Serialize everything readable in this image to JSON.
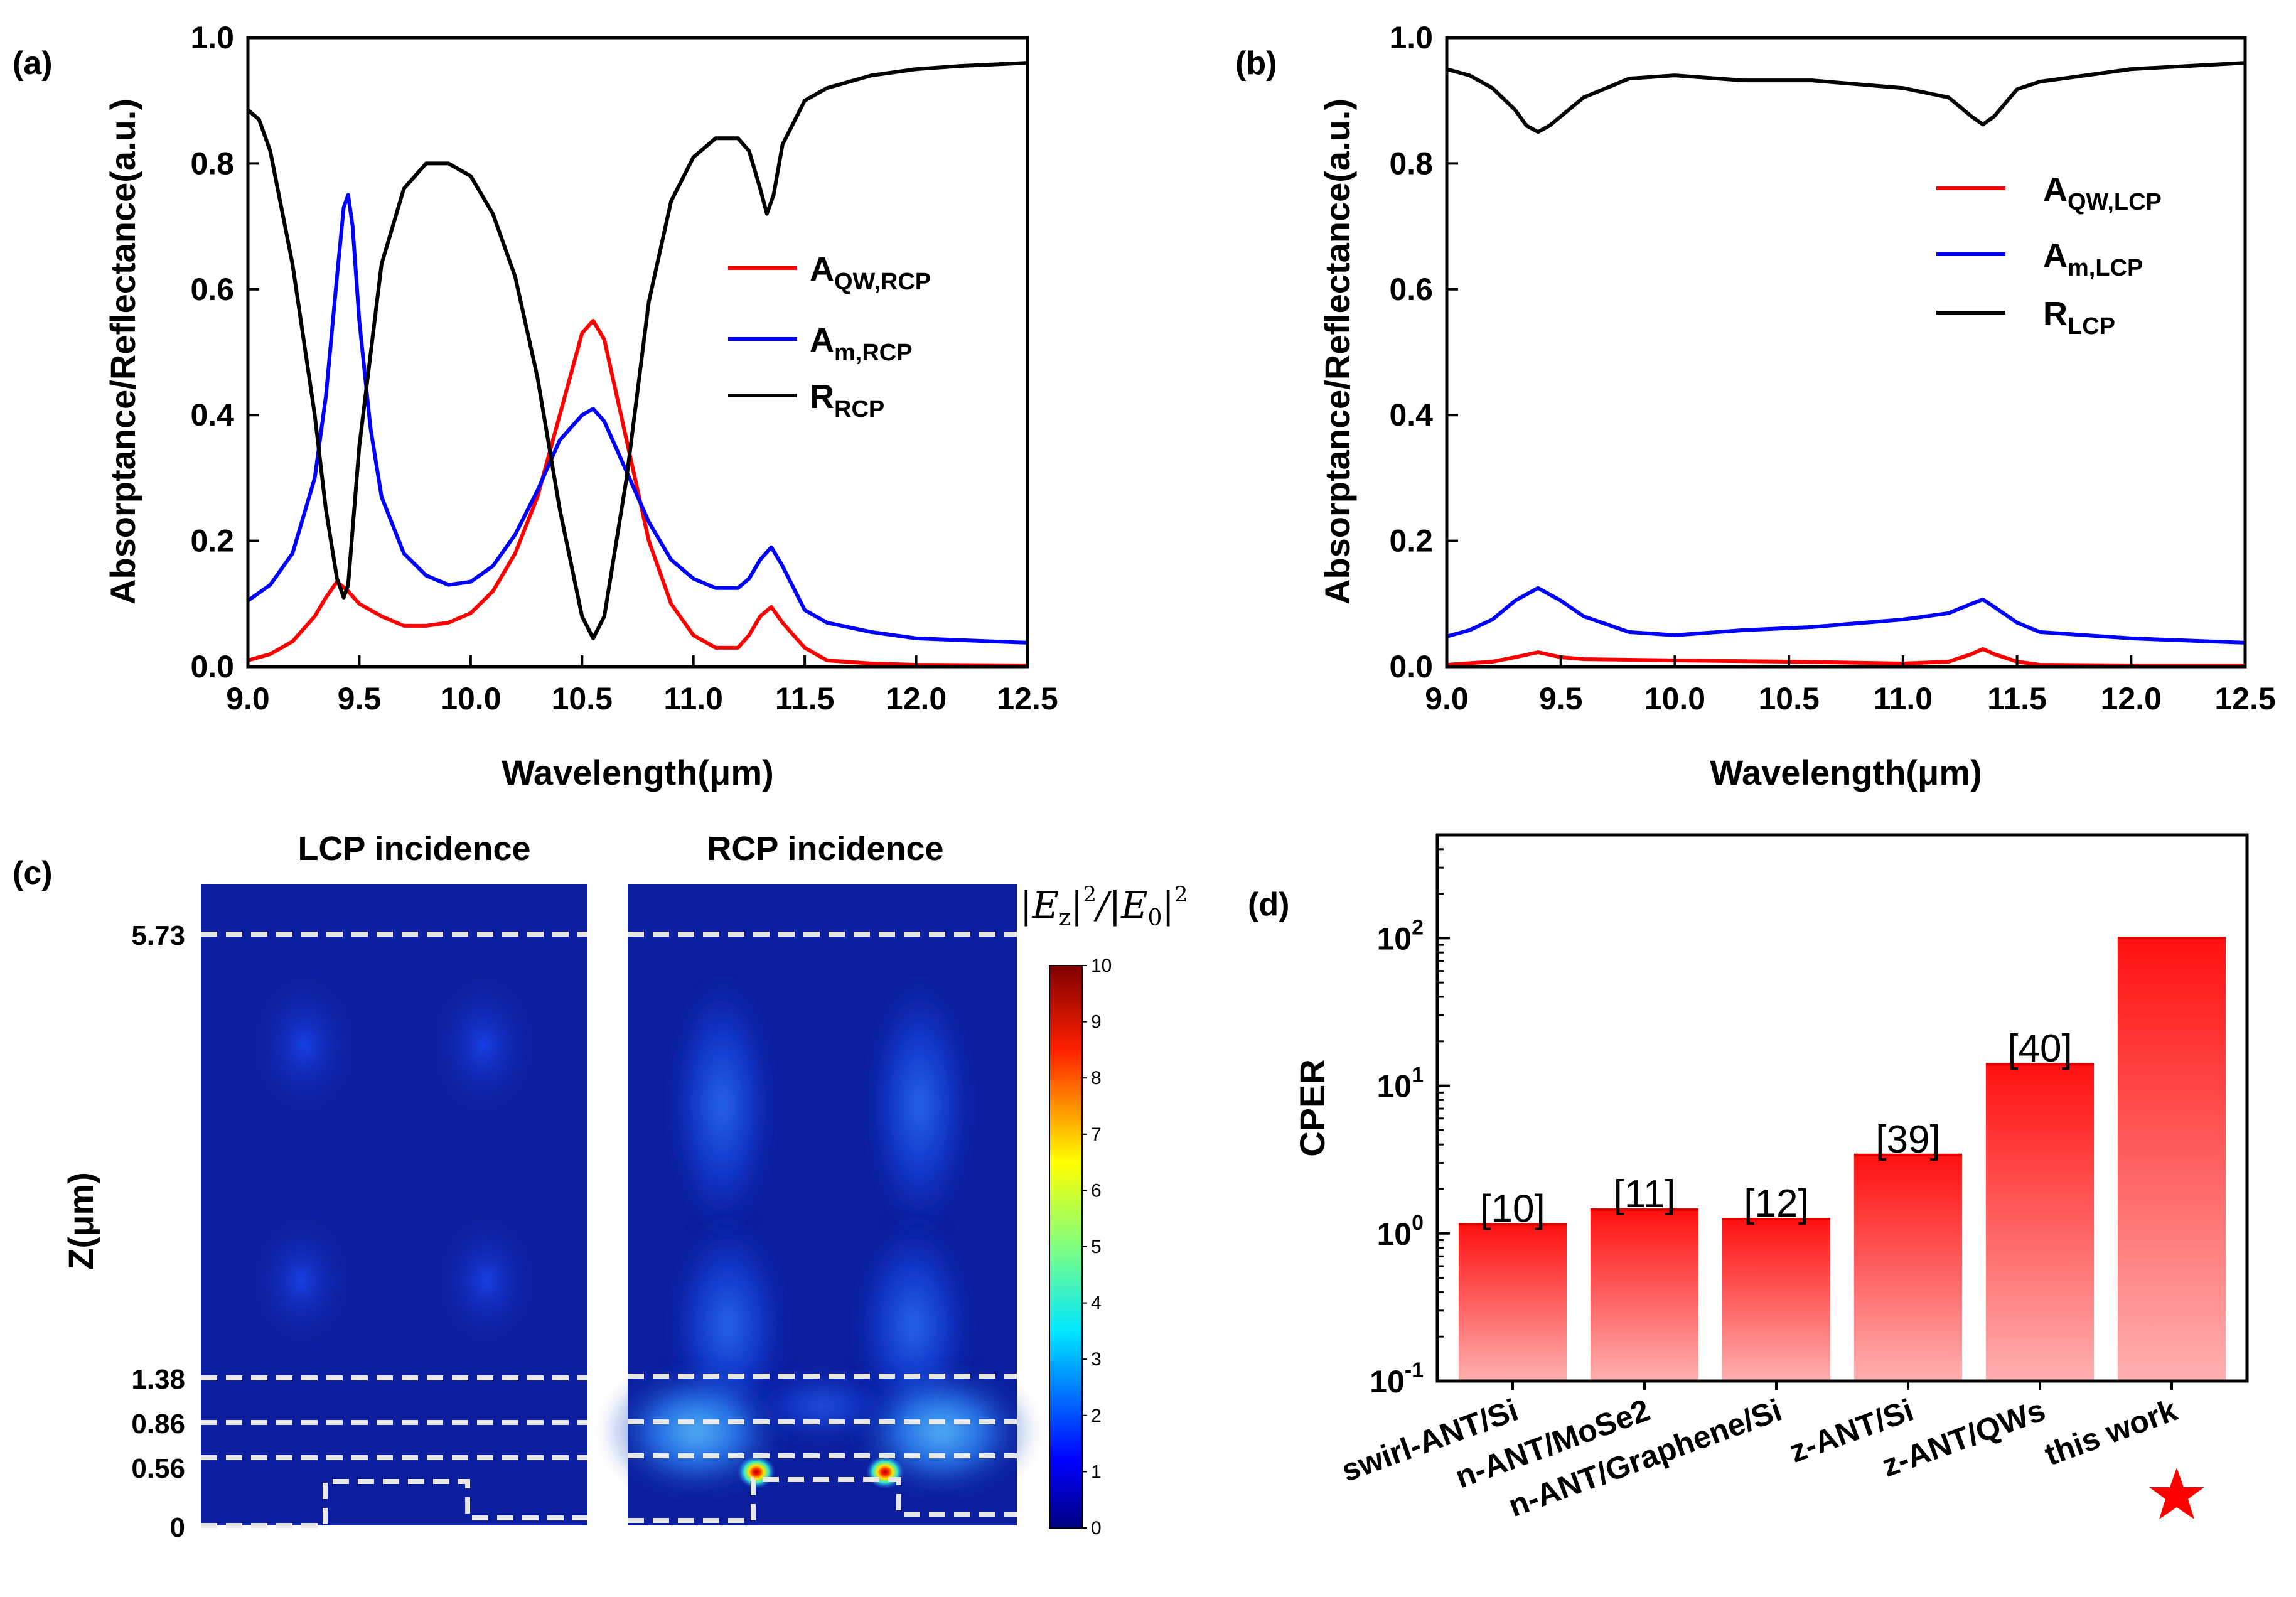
{
  "panel_labels": [
    "(a)",
    "(b)",
    "(c)",
    "(d)"
  ],
  "chart_data": [
    {
      "id": "a",
      "type": "line",
      "xlabel": "Wavelength(μm)",
      "ylabel": "Absorptance/Reflectance(a.u.)",
      "xlim": [
        9.0,
        12.5
      ],
      "ylim": [
        0.0,
        1.0
      ],
      "xticks": [
        "9.0",
        "9.5",
        "10.0",
        "10.5",
        "11.0",
        "11.5",
        "12.0",
        "12.5"
      ],
      "yticks": [
        "0.0",
        "0.2",
        "0.4",
        "0.6",
        "0.8",
        "1.0"
      ],
      "legend_position": "center-right",
      "series": [
        {
          "name": "A",
          "sub": "QW,RCP",
          "color": "#ff0000",
          "x": [
            9.0,
            9.1,
            9.2,
            9.3,
            9.35,
            9.4,
            9.45,
            9.5,
            9.6,
            9.7,
            9.8,
            9.9,
            10.0,
            10.1,
            10.2,
            10.3,
            10.4,
            10.5,
            10.55,
            10.6,
            10.7,
            10.8,
            10.9,
            11.0,
            11.1,
            11.2,
            11.25,
            11.3,
            11.35,
            11.4,
            11.5,
            11.6,
            11.8,
            12.0,
            12.5
          ],
          "y": [
            0.01,
            0.02,
            0.04,
            0.08,
            0.11,
            0.135,
            0.12,
            0.1,
            0.08,
            0.065,
            0.065,
            0.07,
            0.085,
            0.12,
            0.18,
            0.27,
            0.4,
            0.53,
            0.55,
            0.52,
            0.36,
            0.2,
            0.1,
            0.05,
            0.03,
            0.03,
            0.05,
            0.08,
            0.095,
            0.07,
            0.03,
            0.01,
            0.005,
            0.003,
            0.002
          ]
        },
        {
          "name": "A",
          "sub": "m,RCP",
          "color": "#0000ff",
          "x": [
            9.0,
            9.1,
            9.2,
            9.3,
            9.35,
            9.4,
            9.43,
            9.45,
            9.47,
            9.5,
            9.55,
            9.6,
            9.7,
            9.8,
            9.9,
            10.0,
            10.1,
            10.2,
            10.3,
            10.4,
            10.5,
            10.55,
            10.6,
            10.7,
            10.8,
            10.9,
            11.0,
            11.1,
            11.2,
            11.25,
            11.3,
            11.35,
            11.4,
            11.5,
            11.6,
            11.8,
            12.0,
            12.5
          ],
          "y": [
            0.105,
            0.13,
            0.18,
            0.3,
            0.43,
            0.62,
            0.73,
            0.75,
            0.7,
            0.55,
            0.38,
            0.27,
            0.18,
            0.145,
            0.13,
            0.135,
            0.16,
            0.21,
            0.28,
            0.36,
            0.4,
            0.41,
            0.39,
            0.31,
            0.23,
            0.17,
            0.14,
            0.125,
            0.125,
            0.14,
            0.17,
            0.19,
            0.16,
            0.09,
            0.07,
            0.055,
            0.045,
            0.038
          ]
        },
        {
          "name": "R",
          "sub": "RCP",
          "color": "#000000",
          "x": [
            9.0,
            9.05,
            9.1,
            9.2,
            9.3,
            9.35,
            9.4,
            9.43,
            9.45,
            9.5,
            9.6,
            9.7,
            9.8,
            9.9,
            10.0,
            10.1,
            10.2,
            10.3,
            10.4,
            10.5,
            10.55,
            10.6,
            10.7,
            10.8,
            10.9,
            11.0,
            11.1,
            11.2,
            11.25,
            11.3,
            11.33,
            11.36,
            11.4,
            11.5,
            11.6,
            11.8,
            12.0,
            12.2,
            12.5
          ],
          "y": [
            0.885,
            0.87,
            0.82,
            0.64,
            0.4,
            0.25,
            0.14,
            0.11,
            0.13,
            0.35,
            0.64,
            0.76,
            0.8,
            0.8,
            0.78,
            0.72,
            0.62,
            0.46,
            0.25,
            0.08,
            0.045,
            0.08,
            0.3,
            0.58,
            0.74,
            0.81,
            0.84,
            0.84,
            0.82,
            0.76,
            0.72,
            0.75,
            0.83,
            0.9,
            0.92,
            0.94,
            0.95,
            0.955,
            0.96
          ]
        }
      ]
    },
    {
      "id": "b",
      "type": "line",
      "xlabel": "Wavelength(μm)",
      "ylabel": "Absorptance/Reflectance(a.u.)",
      "xlim": [
        9.0,
        12.5
      ],
      "ylim": [
        0.0,
        1.0
      ],
      "xticks": [
        "9.0",
        "9.5",
        "10.0",
        "10.5",
        "11.0",
        "11.5",
        "12.0",
        "12.5"
      ],
      "yticks": [
        "0.0",
        "0.2",
        "0.4",
        "0.6",
        "0.8",
        "1.0"
      ],
      "legend_position": "upper-right",
      "series": [
        {
          "name": "A",
          "sub": "QW,LCP",
          "color": "#ff0000",
          "x": [
            9.0,
            9.2,
            9.3,
            9.4,
            9.5,
            9.6,
            10.0,
            10.5,
            11.0,
            11.2,
            11.3,
            11.35,
            11.4,
            11.5,
            11.6,
            12.0,
            12.5
          ],
          "y": [
            0.003,
            0.008,
            0.015,
            0.023,
            0.015,
            0.012,
            0.01,
            0.008,
            0.005,
            0.008,
            0.02,
            0.028,
            0.02,
            0.008,
            0.003,
            0.002,
            0.002
          ]
        },
        {
          "name": "A",
          "sub": "m,LCP",
          "color": "#0000ff",
          "x": [
            9.0,
            9.1,
            9.2,
            9.3,
            9.4,
            9.5,
            9.6,
            9.8,
            10.0,
            10.3,
            10.6,
            11.0,
            11.2,
            11.3,
            11.35,
            11.4,
            11.5,
            11.6,
            12.0,
            12.5
          ],
          "y": [
            0.048,
            0.058,
            0.075,
            0.105,
            0.125,
            0.105,
            0.08,
            0.055,
            0.05,
            0.058,
            0.063,
            0.075,
            0.085,
            0.1,
            0.107,
            0.095,
            0.07,
            0.055,
            0.045,
            0.038
          ]
        },
        {
          "name": "R",
          "sub": "LCP",
          "color": "#000000",
          "x": [
            9.0,
            9.1,
            9.2,
            9.3,
            9.35,
            9.4,
            9.45,
            9.5,
            9.6,
            9.8,
            10.0,
            10.3,
            10.6,
            11.0,
            11.2,
            11.3,
            11.35,
            11.4,
            11.5,
            11.6,
            12.0,
            12.5
          ],
          "y": [
            0.95,
            0.94,
            0.92,
            0.885,
            0.86,
            0.85,
            0.86,
            0.875,
            0.905,
            0.935,
            0.94,
            0.932,
            0.932,
            0.92,
            0.905,
            0.875,
            0.862,
            0.875,
            0.918,
            0.93,
            0.95,
            0.96
          ]
        }
      ]
    },
    {
      "id": "d",
      "type": "bar",
      "ylabel": "CPER",
      "yscale": "log",
      "ylim": [
        0.1,
        500
      ],
      "yticks": [
        {
          "base": "10",
          "exp": "-1"
        },
        {
          "base": "10",
          "exp": "0"
        },
        {
          "base": "10",
          "exp": "1"
        },
        {
          "base": "10",
          "exp": "2"
        }
      ],
      "categories": [
        "swirl-ANT/Si",
        "n-ANT/MoSe2",
        "n-ANT/Graphene/Si",
        "z-ANT/Si",
        "z-ANT/QWs",
        "this work"
      ],
      "values": [
        1.15,
        1.45,
        1.25,
        3.4,
        14,
        100
      ],
      "refs": [
        "[10]",
        "[11]",
        "[12]",
        "[39]",
        "[40]",
        ""
      ]
    }
  ],
  "field_map": {
    "titles": [
      "LCP incidence",
      "RCP incidence"
    ],
    "ylabel": "Z(μm)",
    "z_ticks": [
      "5.73",
      "1.38",
      "0.86",
      "0.56",
      "0"
    ],
    "colorbar_label": "|E_z|^2/|E_0|^2",
    "colorbar_ticks": [
      "0",
      "1",
      "2",
      "3",
      "4",
      "5",
      "6",
      "7",
      "8",
      "9",
      "10"
    ]
  }
}
